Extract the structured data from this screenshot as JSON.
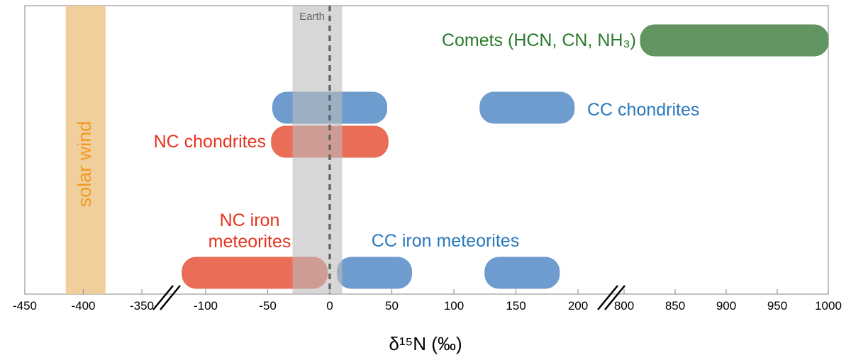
{
  "chart_data": {
    "type": "range",
    "xlabel": "δ¹⁵N (‰)",
    "xlim": [
      -450,
      1000
    ],
    "xticks": [
      -450,
      -400,
      -350,
      -100,
      -50,
      0,
      50,
      100,
      150,
      200,
      800,
      850,
      900,
      950,
      1000
    ],
    "bands": [
      {
        "name": "solar wind",
        "range": [
          -415,
          -381
        ],
        "color": "#f0cf9d"
      },
      {
        "name": "Earth",
        "range": [
          -30,
          10
        ],
        "value": 0,
        "color": "#bdbdbd"
      }
    ],
    "series": [
      {
        "name": "Comets (HCN, CN, NH₃)",
        "color": "#5a8f5a",
        "text_color": "#2a7a2a",
        "ranges": [
          [
            816,
            1000
          ]
        ]
      },
      {
        "name": "CC chondrites",
        "color": "#6797cb",
        "text_color": "#2a78bd",
        "ranges": [
          [
            -46,
            46
          ],
          [
            121,
            197
          ]
        ]
      },
      {
        "name": "NC chondrites",
        "color": "#e8654e",
        "text_color": "#e8321e",
        "ranges": [
          [
            -47,
            47
          ]
        ]
      },
      {
        "name": "NC iron\nmeteorites",
        "color": "#e8654e",
        "text_color": "#e8321e",
        "ranges": [
          [
            -119,
            -2
          ]
        ]
      },
      {
        "name": "CC iron meteorites",
        "color": "#6797cb",
        "text_color": "#2a78bd",
        "ranges": [
          [
            6,
            66
          ],
          [
            125,
            185
          ]
        ]
      }
    ]
  }
}
